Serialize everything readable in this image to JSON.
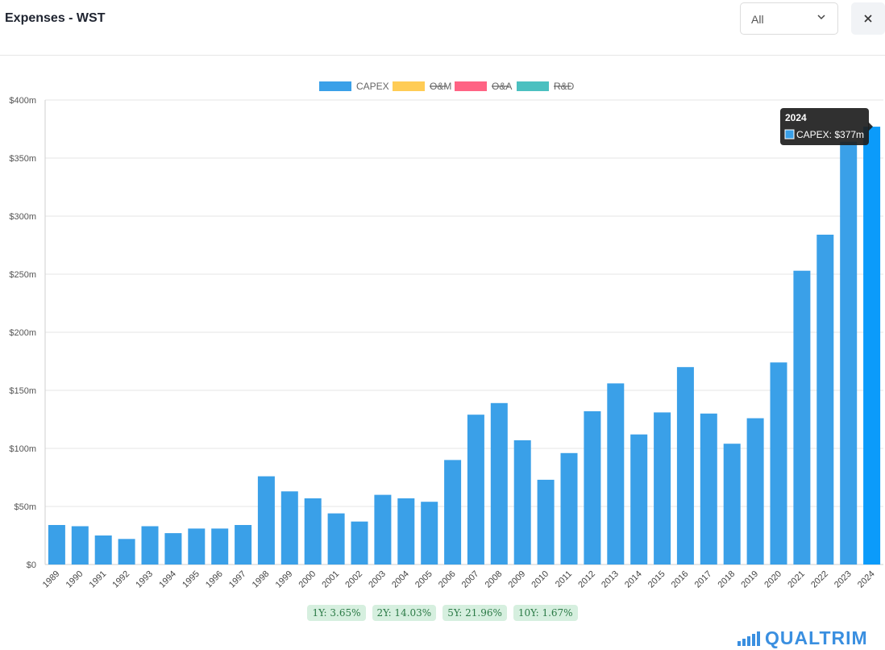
{
  "header": {
    "title": "Expenses - WST"
  },
  "filter": {
    "selected": "All"
  },
  "tooltip": {
    "title": "2024",
    "label": "CAPEX: $377m"
  },
  "stats": [
    {
      "label": "1Y: 3.65%"
    },
    {
      "label": "2Y: 14.03%"
    },
    {
      "label": "5Y: 21.96%"
    },
    {
      "label": "10Y: 1.67%"
    }
  ],
  "brand": {
    "name": "QUALTRIM"
  },
  "colors": {
    "capex": "#3aa0e8",
    "capex_hover": "#0b9bfa",
    "om": "#ffcc55",
    "oa": "#ff6384",
    "rd": "#4bc0c0",
    "badge_bg": "#d6efdf"
  },
  "chart_data": {
    "type": "bar",
    "title": "",
    "xlabel": "",
    "ylabel": "",
    "ylim": [
      0,
      400
    ],
    "yticks": [
      "$0",
      "$50m",
      "$100m",
      "$150m",
      "$200m",
      "$250m",
      "$300m",
      "$350m",
      "$400m"
    ],
    "categories": [
      "1989",
      "1990",
      "1991",
      "1992",
      "1993",
      "1994",
      "1995",
      "1996",
      "1997",
      "1998",
      "1999",
      "2000",
      "2001",
      "2002",
      "2003",
      "2004",
      "2005",
      "2006",
      "2007",
      "2008",
      "2009",
      "2010",
      "2011",
      "2012",
      "2013",
      "2014",
      "2015",
      "2016",
      "2017",
      "2018",
      "2019",
      "2020",
      "2021",
      "2022",
      "2023",
      "2024"
    ],
    "legend": [
      {
        "name": "CAPEX",
        "color": "#3aa0e8",
        "hidden": false
      },
      {
        "name": "O&M",
        "color": "#ffcc55",
        "hidden": true
      },
      {
        "name": "O&A",
        "color": "#ff6384",
        "hidden": true
      },
      {
        "name": "R&D",
        "color": "#4bc0c0",
        "hidden": true
      }
    ],
    "legend_position": "top",
    "series": [
      {
        "name": "CAPEX",
        "values": [
          34,
          33,
          25,
          22,
          33,
          27,
          31,
          31,
          34,
          76,
          63,
          57,
          44,
          37,
          60,
          57,
          54,
          90,
          129,
          139,
          107,
          73,
          96,
          132,
          156,
          112,
          131,
          170,
          130,
          104,
          126,
          174,
          253,
          284,
          364,
          377
        ]
      }
    ],
    "grid": true
  }
}
